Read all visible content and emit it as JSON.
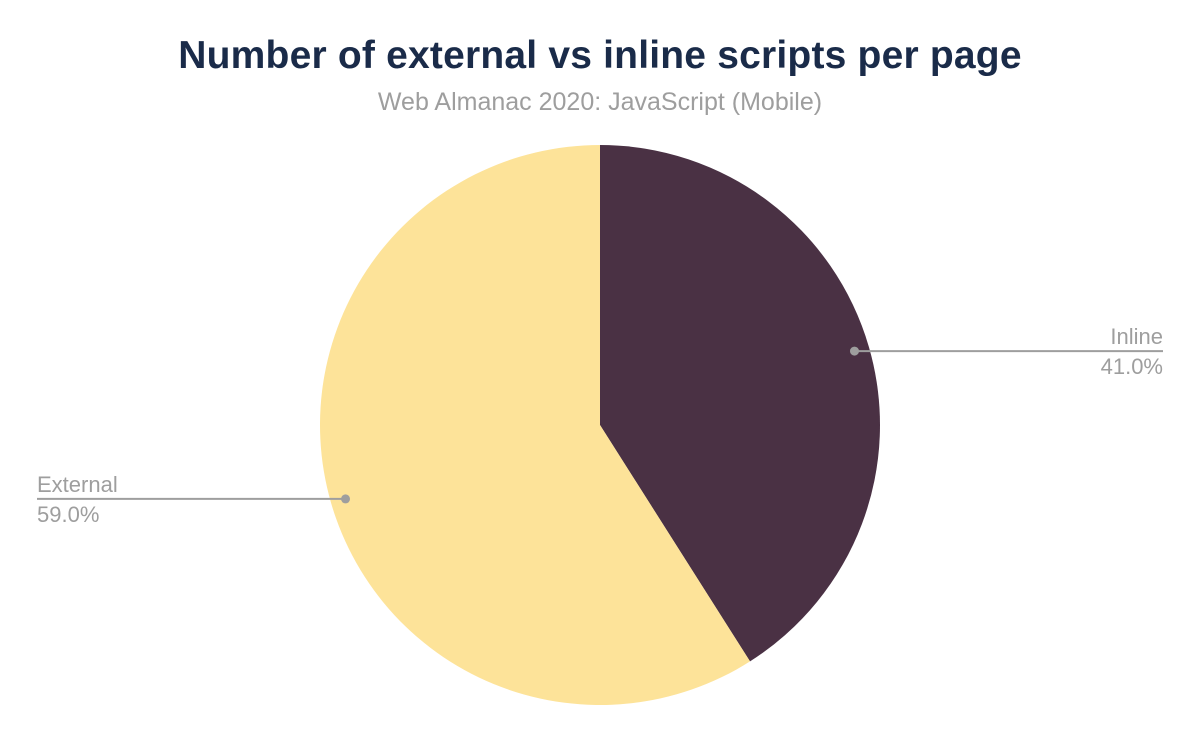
{
  "header": {
    "title": "Number of external vs inline scripts per page",
    "subtitle": "Web Almanac 2020: JavaScript (Mobile)"
  },
  "chart_data": {
    "type": "pie",
    "title": "Number of external vs inline scripts per page",
    "subtitle": "Web Almanac 2020: JavaScript (Mobile)",
    "unit": "percent",
    "start_angle_deg": 0,
    "direction": "clockwise",
    "slices": [
      {
        "label": "Inline",
        "value": 41.0,
        "display": "41.0%",
        "color": "#4a3144"
      },
      {
        "label": "External",
        "value": 59.0,
        "display": "59.0%",
        "color": "#fde399"
      }
    ],
    "legend_position": "outside-leader-lines",
    "grid": false
  },
  "colors": {
    "background": "#ffffff",
    "title": "#1a2b49",
    "subtitle": "#9e9e9e",
    "label_text": "#9e9e9e",
    "leader_line": "#9e9e9e",
    "leader_dot": "#9e9e9e"
  }
}
